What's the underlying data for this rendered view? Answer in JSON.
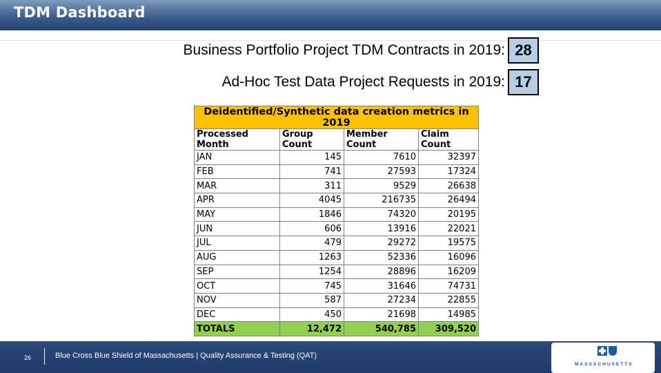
{
  "slide": {
    "title": "TDM Dashboard",
    "metrics": [
      {
        "label": "Business Portfolio Project TDM Contracts in 2019:",
        "value": "28"
      },
      {
        "label": "Ad-Hoc Test Data Project Requests in 2019:",
        "value": "17"
      }
    ],
    "table": {
      "caption": "Deidentified/Synthetic data creation metrics in 2019",
      "headers": [
        "Processed Month",
        "Group Count",
        "Member Count",
        "Claim Count"
      ],
      "rows": [
        [
          "JAN",
          "145",
          "7610",
          "32397"
        ],
        [
          "FEB",
          "741",
          "27593",
          "17324"
        ],
        [
          "MAR",
          "311",
          "9529",
          "26638"
        ],
        [
          "APR",
          "4045",
          "216735",
          "26494"
        ],
        [
          "MAY",
          "1846",
          "74320",
          "20195"
        ],
        [
          "JUN",
          "606",
          "13916",
          "22021"
        ],
        [
          "JUL",
          "479",
          "29272",
          "19575"
        ],
        [
          "AUG",
          "1263",
          "52336",
          "16096"
        ],
        [
          "SEP",
          "1254",
          "28896",
          "16209"
        ],
        [
          "OCT",
          "745",
          "31646",
          "74731"
        ],
        [
          "NOV",
          "587",
          "27234",
          "22855"
        ],
        [
          "DEC",
          "450",
          "21698",
          "14985"
        ]
      ],
      "totals": [
        "TOTALS",
        "12,472",
        "540,785",
        "309,520"
      ]
    },
    "colors": {
      "caption_bg": "#ffc000",
      "totals_bg": "#92d050",
      "metric_box_bg": "#b7cfe6"
    }
  },
  "footer": {
    "page_number": "26",
    "text": "Blue Cross Blue Shield of Massachusetts | Quality Assurance & Testing (QAT)",
    "logo_text": "MASSACHUSETTS",
    "logo_icon": "bcbs-cross-shield-logo"
  }
}
